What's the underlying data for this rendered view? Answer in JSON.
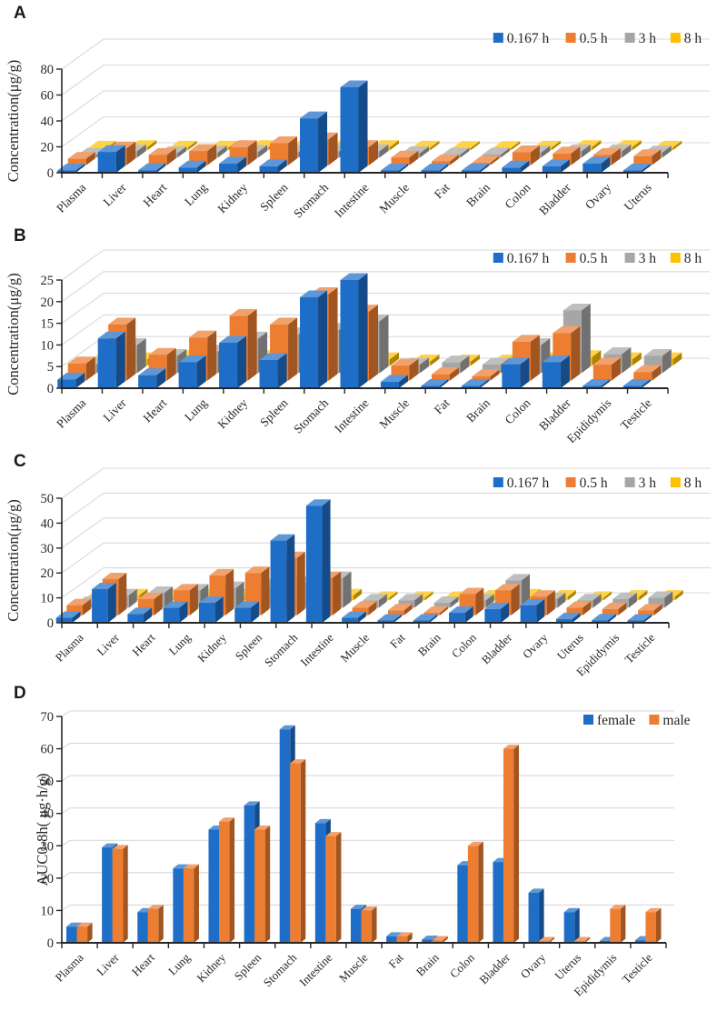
{
  "figure": {
    "background": "#ffffff",
    "axis_color": "#262626",
    "grid_color": "#d9d9d9"
  },
  "chart_data": [
    {
      "panel": "A",
      "type": "bar",
      "projection": "3d",
      "ylabel": "Concentration(μg/g)",
      "ylim": [
        0,
        80
      ],
      "ytick_step": 20,
      "grid": true,
      "legend_position": "top-right",
      "categories": [
        "Plasma",
        "Liver",
        "Heart",
        "Lung",
        "Kidney",
        "Spleen",
        "Stomach",
        "Intestine",
        "Muscle",
        "Fat",
        "Brain",
        "Colon",
        "Bladder",
        "Ovary",
        "Uterus"
      ],
      "series": [
        {
          "name": "0.167 h",
          "color": "#1E6EC8",
          "values": [
            1.5,
            16,
            2,
            4,
            7,
            5,
            42,
            66,
            1.5,
            1,
            1,
            4,
            5,
            7,
            1.5
          ]
        },
        {
          "name": "0.5 h",
          "color": "#ED7D31",
          "values": [
            5,
            13,
            8,
            11,
            14,
            17,
            20,
            14,
            6,
            3,
            2,
            10,
            9,
            8,
            7
          ]
        },
        {
          "name": "3 h",
          "color": "#A6A6A6",
          "values": [
            2.5,
            5,
            3.5,
            4,
            4.5,
            4.5,
            5,
            5,
            3.5,
            2.5,
            2.5,
            4,
            5,
            5,
            4
          ]
        },
        {
          "name": "8 h",
          "color": "#FFC000",
          "values": [
            2,
            2.5,
            2,
            2,
            2.5,
            2.5,
            2.5,
            2.5,
            2,
            1.5,
            1.5,
            2,
            2.5,
            2.5,
            2
          ]
        }
      ]
    },
    {
      "panel": "B",
      "type": "bar",
      "projection": "3d",
      "ylabel": "Concentration(μg/g)",
      "ylim": [
        0,
        25
      ],
      "ytick_step": 5,
      "grid": true,
      "legend_position": "top-right",
      "categories": [
        "Plasma",
        "Liver",
        "Heart",
        "Lung",
        "Kidney",
        "Spleen",
        "Stomach",
        "Intestine",
        "Muscle",
        "Fat",
        "Brain",
        "Colon",
        "Bladder",
        "Epididymis",
        "Testicle"
      ],
      "series": [
        {
          "name": "0.167 h",
          "color": "#1E6EC8",
          "values": [
            2,
            11.5,
            3,
            6,
            10.5,
            6.5,
            21,
            25,
            1.5,
            0.5,
            0.4,
            5.5,
            6,
            0.5,
            0.3
          ]
        },
        {
          "name": "0.5 h",
          "color": "#ED7D31",
          "values": [
            4,
            13,
            6,
            10,
            15,
            13,
            20,
            16,
            3.5,
            1.5,
            1,
            9,
            11,
            3.7,
            2
          ]
        },
        {
          "name": "3 h",
          "color": "#A6A6A6",
          "values": [
            2,
            6.5,
            4,
            5,
            8,
            9,
            10,
            12,
            2,
            2.5,
            2,
            6.5,
            14.5,
            4.4,
            4
          ]
        },
        {
          "name": "8 h",
          "color": "#FFC000",
          "values": [
            1,
            1.5,
            2,
            2.5,
            2,
            1.5,
            1.5,
            1.5,
            1,
            1,
            1,
            1.5,
            2,
            1.5,
            1.5
          ]
        }
      ]
    },
    {
      "panel": "C",
      "type": "bar",
      "projection": "3d",
      "ylabel": "Concentration(μg/g)",
      "ylim": [
        0,
        50
      ],
      "ytick_step": 10,
      "grid": true,
      "legend_position": "top-right",
      "categories": [
        "Plasma",
        "Liver",
        "Heart",
        "Lung",
        "Kidney",
        "Spleen",
        "Stomach",
        "Intestine",
        "Muscle",
        "Fat",
        "Brain",
        "Colon",
        "Bladder",
        "Ovary",
        "Uterus",
        "Epididymis",
        "Testicle"
      ],
      "series": [
        {
          "name": "0.167 h",
          "color": "#1E6EC8",
          "values": [
            2,
            13.5,
            3.5,
            6,
            8,
            6,
            33,
            47,
            2,
            0.5,
            0.4,
            4,
            5.5,
            7,
            1.5,
            1,
            0.5
          ]
        },
        {
          "name": "0.5 h",
          "color": "#ED7D31",
          "values": [
            4,
            14.5,
            6.5,
            10,
            16,
            17,
            23,
            15,
            3,
            2,
            1,
            8.5,
            10,
            7.5,
            3,
            2.5,
            2
          ]
        },
        {
          "name": "3 h",
          "color": "#A6A6A6",
          "values": [
            2,
            5,
            6,
            7,
            8,
            9,
            10,
            12,
            3,
            3,
            2,
            3,
            11,
            3.5,
            3,
            3.5,
            4
          ]
        },
        {
          "name": "8 h",
          "color": "#FFC000",
          "values": [
            1.5,
            2,
            2,
            2,
            2,
            1.5,
            1.5,
            2,
            1,
            1,
            1,
            1.5,
            2,
            1.5,
            1,
            1.5,
            1.5
          ]
        }
      ]
    },
    {
      "panel": "D",
      "type": "bar",
      "projection": "2d",
      "ylabel": "AUC0-8h( μg·h/g)",
      "ylim": [
        0,
        70
      ],
      "ytick_step": 10,
      "grid": true,
      "legend_position": "top-right",
      "categories": [
        "Plasma",
        "Liver",
        "Heart",
        "Lung",
        "Kidney",
        "Spleen",
        "Stomach",
        "Intestine",
        "Muscle",
        "Fat",
        "Brain",
        "Colon",
        "Bladder",
        "Ovary",
        "Uterus",
        "Epididymis",
        "Testicle"
      ],
      "series": [
        {
          "name": "female",
          "color": "#1E6EC8",
          "values": [
            5,
            29.5,
            9.5,
            23,
            35,
            42.5,
            66,
            37,
            10.5,
            2,
            1,
            24,
            25,
            15.5,
            9.5,
            0.5,
            0.8
          ]
        },
        {
          "name": "male",
          "color": "#ED7D31",
          "values": [
            5,
            29,
            10.5,
            23,
            37.5,
            35,
            55.5,
            33,
            10,
            2,
            0.8,
            30,
            60,
            0.5,
            0.5,
            10.5,
            9.5
          ]
        }
      ]
    }
  ]
}
